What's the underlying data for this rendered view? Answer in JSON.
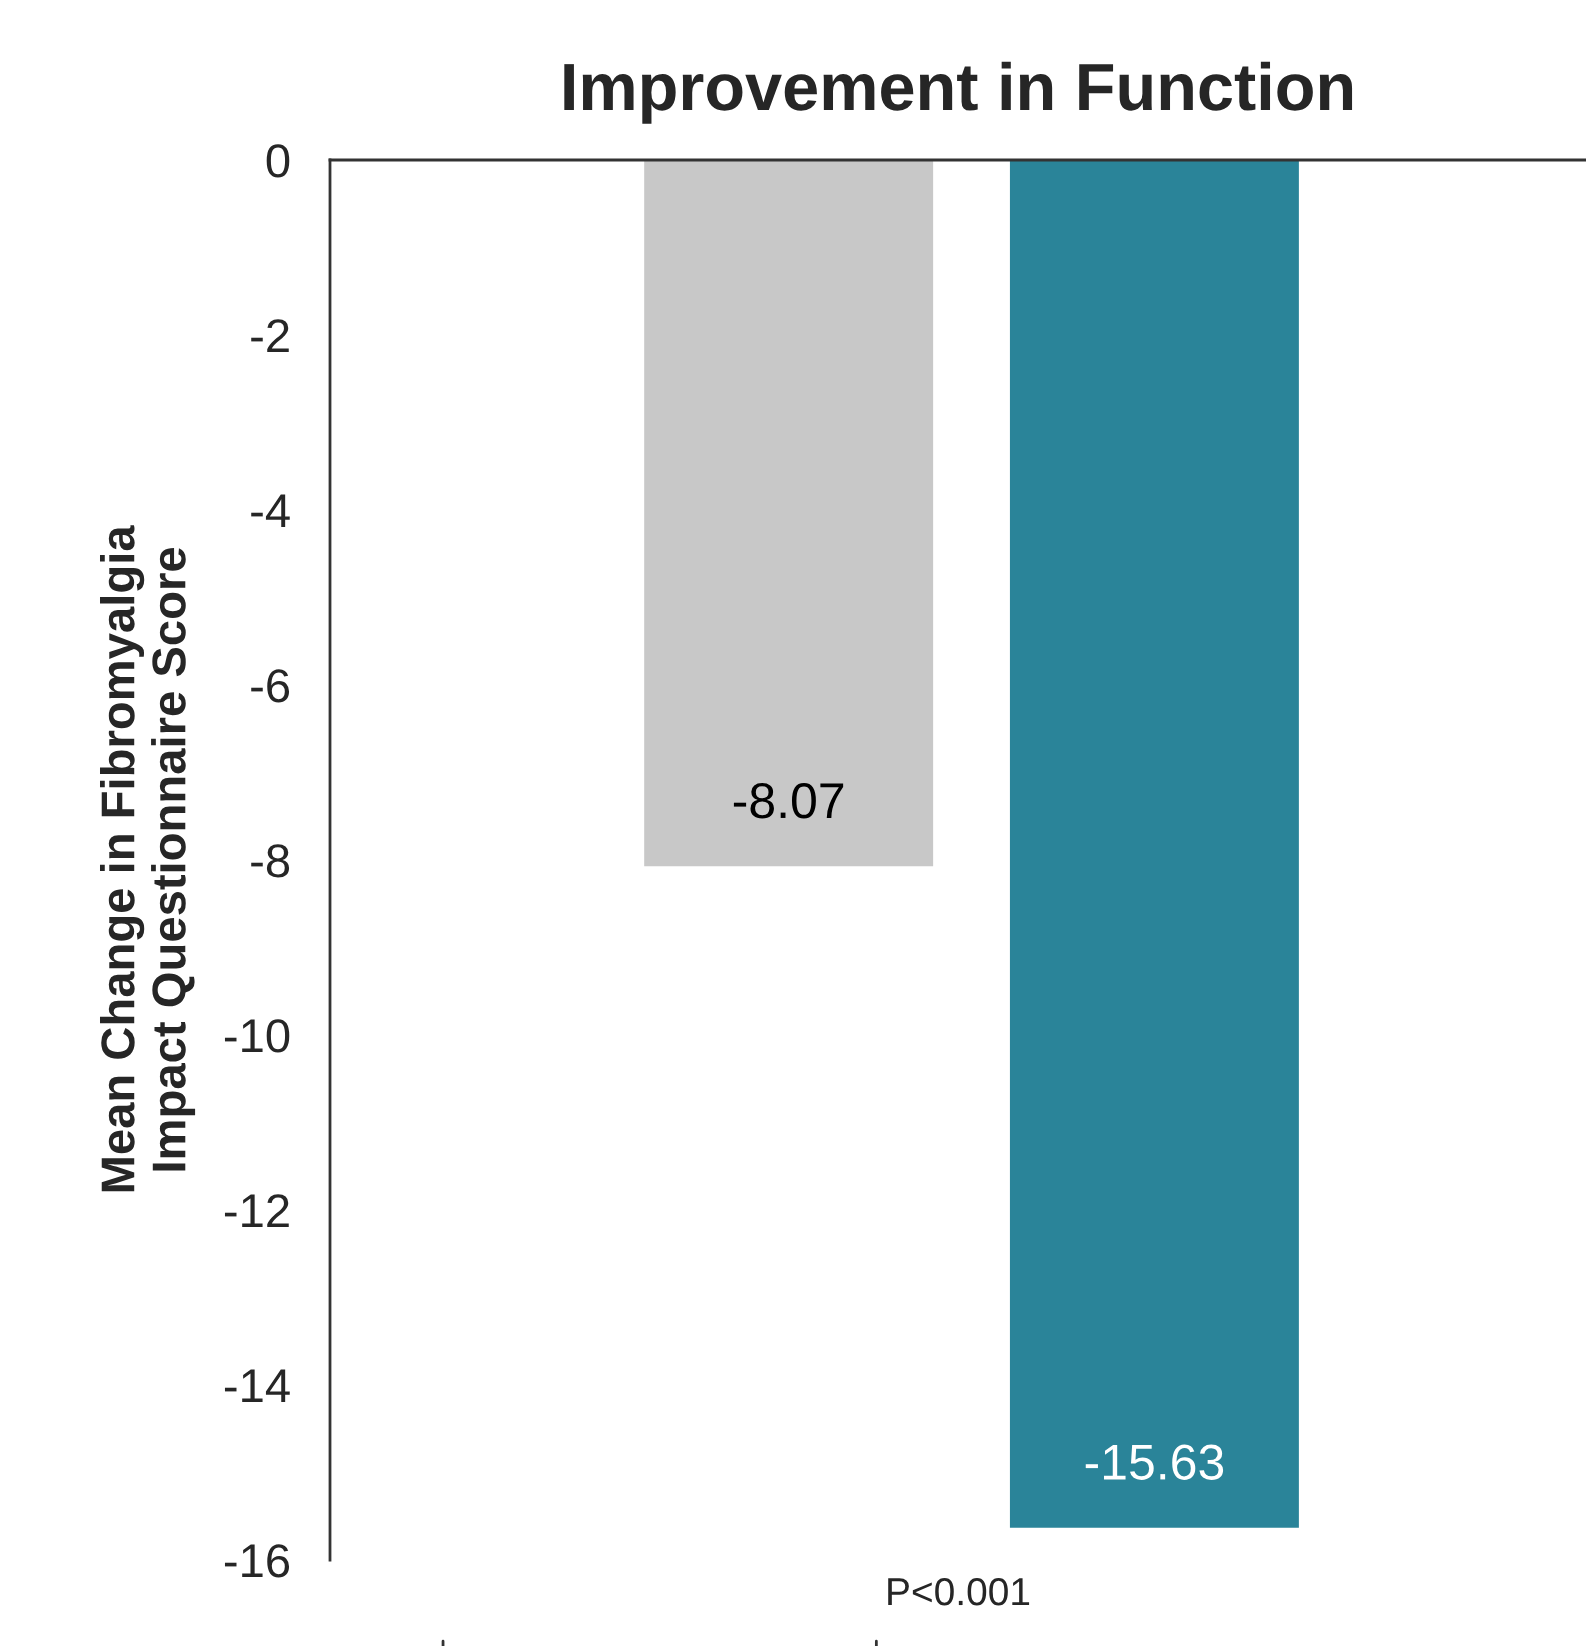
{
  "chart_data": {
    "type": "bar",
    "title": "Improvement in Function",
    "ylabel": "Mean Change in Fibromyalgia\nImpact Questionnaire Score",
    "categories": [
      null,
      null
    ],
    "values": [
      -8.07,
      -15.63
    ],
    "colors": [
      "#c8c8c8",
      "#2a8499"
    ],
    "ylim": [
      -16,
      0
    ],
    "yticks": [
      0,
      -2,
      -4,
      -6,
      -8,
      -10,
      -12,
      -14,
      -16
    ],
    "data_labels": true,
    "grid": false,
    "tick_labels": "y",
    "annotations": [
      "P<0.001"
    ]
  }
}
